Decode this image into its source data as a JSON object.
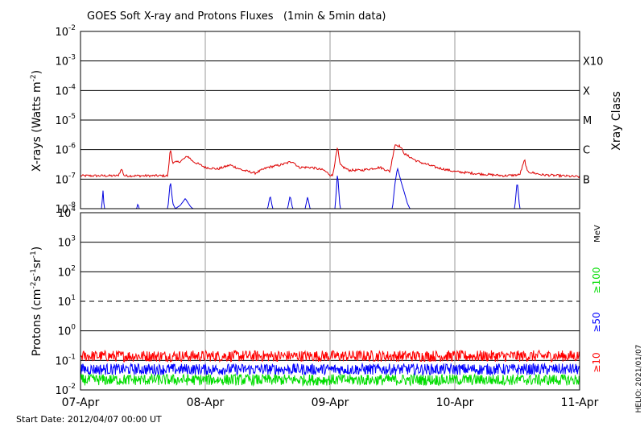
{
  "chart_data": [
    {
      "type": "line",
      "title": "GOES Soft X-ray and Protons Fluxes   (1min & 5min data)",
      "ylabel": "X-rays (Watts m",
      "ylabel_sup": "-2",
      "ylabel_close": ")",
      "yscale": "log",
      "ylim": [
        1e-08,
        0.01
      ],
      "y_ticks": [
        {
          "value": 0.01,
          "exp": "-2"
        },
        {
          "value": 0.001,
          "exp": "-3"
        },
        {
          "value": 0.0001,
          "exp": "-4"
        },
        {
          "value": 1e-05,
          "exp": "-5"
        },
        {
          "value": 1e-06,
          "exp": "-6"
        },
        {
          "value": 1e-07,
          "exp": "-7"
        },
        {
          "value": 1e-08,
          "exp": "-8"
        }
      ],
      "y_tick_base": "10",
      "right_axis_label": "Xray Class",
      "class_labels": [
        {
          "label": "X10",
          "value": 0.001
        },
        {
          "label": "X",
          "value": 0.0001
        },
        {
          "label": "M",
          "value": 1e-05
        },
        {
          "label": "C",
          "value": 1e-06
        },
        {
          "label": "B",
          "value": 1e-07
        }
      ],
      "grid": true,
      "xlim_days": [
        0,
        4
      ],
      "series": [
        {
          "color": "#dd0000",
          "baseline": 1.3e-07,
          "noise_dex": 0.08,
          "points": [
            [
              0,
              1.3e-07
            ],
            [
              0.3,
              1.3e-07
            ],
            [
              0.33,
              2.2e-07
            ],
            [
              0.35,
              1.3e-07
            ],
            [
              0.7,
              1.3e-07
            ],
            [
              0.72,
              1.1e-06
            ],
            [
              0.74,
              3.5e-07
            ],
            [
              0.8,
              4e-07
            ],
            [
              0.86,
              6e-07
            ],
            [
              0.9,
              4e-07
            ],
            [
              1.0,
              2.5e-07
            ],
            [
              1.1,
              2.2e-07
            ],
            [
              1.2,
              3e-07
            ],
            [
              1.3,
              2e-07
            ],
            [
              1.4,
              1.6e-07
            ],
            [
              1.5,
              2.5e-07
            ],
            [
              1.6,
              3e-07
            ],
            [
              1.7,
              4e-07
            ],
            [
              1.75,
              2.5e-07
            ],
            [
              1.85,
              2.5e-07
            ],
            [
              1.95,
              2e-07
            ],
            [
              2.0,
              1.4e-07
            ],
            [
              2.02,
              1.3e-07
            ],
            [
              2.06,
              1.2e-06
            ],
            [
              2.08,
              3e-07
            ],
            [
              2.15,
              2e-07
            ],
            [
              2.25,
              2e-07
            ],
            [
              2.4,
              2.5e-07
            ],
            [
              2.48,
              1.8e-07
            ],
            [
              2.52,
              1.5e-06
            ],
            [
              2.56,
              1.3e-06
            ],
            [
              2.6,
              7e-07
            ],
            [
              2.7,
              4e-07
            ],
            [
              2.85,
              2.5e-07
            ],
            [
              3.0,
              1.8e-07
            ],
            [
              3.2,
              1.5e-07
            ],
            [
              3.4,
              1.3e-07
            ],
            [
              3.52,
              1.4e-07
            ],
            [
              3.56,
              4.5e-07
            ],
            [
              3.58,
              1.8e-07
            ],
            [
              3.7,
              1.4e-07
            ],
            [
              4.0,
              1.2e-07
            ]
          ]
        },
        {
          "color": "#0000dd",
          "baseline": 1e-08,
          "noise_dex": 0,
          "points": [
            [
              0,
              1e-08
            ],
            [
              0.17,
              1e-08
            ],
            [
              0.18,
              4.5e-08
            ],
            [
              0.19,
              1e-08
            ],
            [
              0.45,
              1e-08
            ],
            [
              0.46,
              1.5e-08
            ],
            [
              0.47,
              1e-08
            ],
            [
              0.7,
              1e-08
            ],
            [
              0.72,
              9e-08
            ],
            [
              0.74,
              1.5e-08
            ],
            [
              0.76,
              1e-08
            ],
            [
              0.8,
              1.3e-08
            ],
            [
              0.84,
              2.2e-08
            ],
            [
              0.88,
              1.2e-08
            ],
            [
              0.9,
              1e-08
            ],
            [
              1.5,
              1e-08
            ],
            [
              1.52,
              2.8e-08
            ],
            [
              1.54,
              1e-08
            ],
            [
              1.66,
              1e-08
            ],
            [
              1.68,
              2.8e-08
            ],
            [
              1.7,
              1e-08
            ],
            [
              1.8,
              1e-08
            ],
            [
              1.82,
              2.5e-08
            ],
            [
              1.84,
              1e-08
            ],
            [
              2.04,
              1e-08
            ],
            [
              2.06,
              1.7e-07
            ],
            [
              2.08,
              1e-08
            ],
            [
              2.5,
              1e-08
            ],
            [
              2.52,
              7e-08
            ],
            [
              2.54,
              2.4e-07
            ],
            [
              2.57,
              8e-08
            ],
            [
              2.6,
              3e-08
            ],
            [
              2.62,
              1.5e-08
            ],
            [
              2.64,
              1e-08
            ],
            [
              3.48,
              1e-08
            ],
            [
              3.5,
              9e-08
            ],
            [
              3.52,
              1e-08
            ],
            [
              4.0,
              1e-08
            ]
          ]
        }
      ]
    },
    {
      "type": "line",
      "ylabel": "Protons (cm",
      "ylabel_parts": [
        "-2",
        "s",
        "-1",
        "sr",
        "-1"
      ],
      "ylabel_close": ")",
      "yscale": "log",
      "ylim": [
        0.01,
        10000
      ],
      "y_ticks": [
        {
          "value": 10000,
          "exp": "4"
        },
        {
          "value": 1000,
          "exp": "3"
        },
        {
          "value": 100,
          "exp": "2"
        },
        {
          "value": 10,
          "exp": "1"
        },
        {
          "value": 1,
          "exp": "0"
        },
        {
          "value": 0.1,
          "exp": "-1"
        },
        {
          "value": 0.01,
          "exp": "-2"
        }
      ],
      "y_tick_base": "10",
      "threshold": 10,
      "grid": true,
      "units": "MeV",
      "series": [
        {
          "name": "≥10",
          "color": "#ff0000",
          "baseline": 0.14,
          "noise_dex": 0.12
        },
        {
          "name": "≥50",
          "color": "#0000ff",
          "baseline": 0.05,
          "noise_dex": 0.12
        },
        {
          "name": "≥100",
          "color": "#00dd00",
          "baseline": 0.022,
          "noise_dex": 0.12
        }
      ],
      "x_tick_labels": [
        "07-Apr",
        "08-Apr",
        "09-Apr",
        "10-Apr",
        "11-Apr"
      ]
    }
  ],
  "footer": {
    "start_date": "Start Date: 2012/04/07 00:00 UT",
    "credit": "HELIO: 2021/01/07"
  }
}
